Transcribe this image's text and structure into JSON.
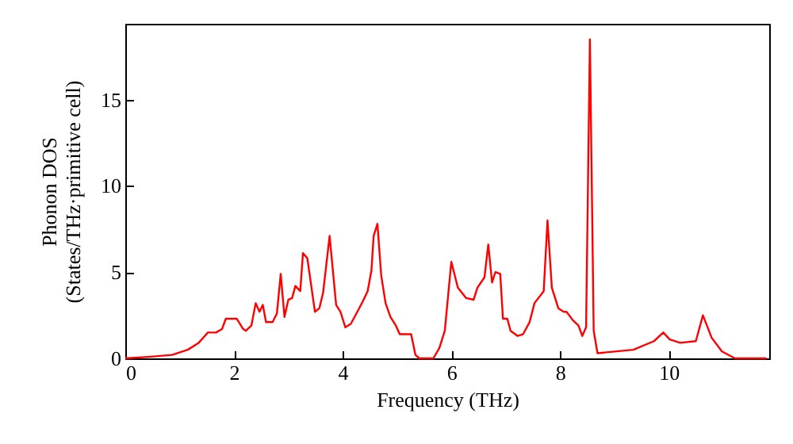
{
  "chart_data": {
    "type": "line",
    "xlabel": "Frequency (THz)",
    "ylabel": "Phonon DOS\n(States/THz·primitive cell)",
    "x": [
      0,
      0.47,
      0.86,
      1.15,
      1.35,
      1.52,
      1.67,
      1.78,
      1.85,
      2.05,
      2.17,
      2.22,
      2.32,
      2.4,
      2.47,
      2.53,
      2.59,
      2.71,
      2.79,
      2.86,
      2.93,
      3.0,
      3.07,
      3.13,
      3.22,
      3.27,
      3.35,
      3.49,
      3.57,
      3.64,
      3.76,
      3.88,
      3.96,
      4.05,
      4.15,
      4.27,
      4.37,
      4.46,
      4.53,
      4.57,
      4.64,
      4.71,
      4.79,
      4.88,
      4.98,
      5.05,
      5.26,
      5.34,
      5.41,
      5.67,
      5.78,
      5.88,
      6.0,
      6.12,
      6.27,
      6.41,
      6.48,
      6.61,
      6.68,
      6.75,
      6.81,
      6.9,
      6.95,
      7.03,
      7.09,
      7.22,
      7.32,
      7.44,
      7.53,
      7.7,
      7.77,
      7.85,
      7.97,
      8.07,
      8.12,
      8.24,
      8.34,
      8.41,
      8.48,
      8.55,
      8.62,
      8.69,
      9.35,
      9.73,
      9.9,
      10.02,
      10.21,
      10.5,
      10.63,
      10.79,
      10.98,
      11.22,
      11.8
    ],
    "series": [
      {
        "color": "#ff0000",
        "values": [
          0,
          0.1,
          0.2,
          0.5,
          0.9,
          1.5,
          1.5,
          1.7,
          2.3,
          2.3,
          1.7,
          1.6,
          1.9,
          3.2,
          2.7,
          3.1,
          2.1,
          2.1,
          2.6,
          4.9,
          2.4,
          3.4,
          3.5,
          4.2,
          3.9,
          6.1,
          5.8,
          2.7,
          2.9,
          3.8,
          7.1,
          3.1,
          2.7,
          1.8,
          2.0,
          2.7,
          3.3,
          3.9,
          5.1,
          7.1,
          7.8,
          4.8,
          3.2,
          2.4,
          1.9,
          1.4,
          1.4,
          0.2,
          0,
          0,
          0.6,
          1.6,
          5.6,
          4.1,
          3.5,
          3.4,
          4.1,
          4.7,
          6.6,
          4.4,
          5.0,
          4.9,
          2.3,
          2.3,
          1.6,
          1.3,
          1.4,
          2.1,
          3.2,
          3.9,
          8.0,
          4.1,
          2.9,
          2.7,
          2.7,
          2.2,
          1.9,
          1.3,
          1.8,
          18.5,
          1.6,
          0.3,
          0.5,
          1.0,
          1.5,
          1.1,
          0.9,
          1.0,
          2.5,
          1.2,
          0.4,
          0,
          0
        ]
      }
    ],
    "xlim": [
      0,
      11.85
    ],
    "ylim": [
      0,
      19.4
    ],
    "xticks": [
      0,
      2,
      4,
      6,
      8,
      10
    ],
    "yticks": [
      0,
      5,
      10,
      15
    ],
    "grid": false,
    "marker": "none",
    "line_style": "solid"
  }
}
